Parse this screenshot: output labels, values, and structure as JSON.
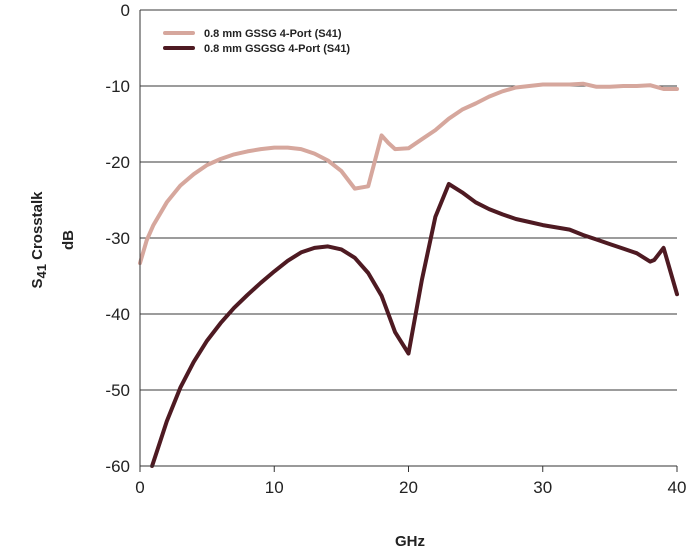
{
  "chart_data": {
    "type": "line",
    "title": "",
    "xlabel": "GHz",
    "ylabel_prefix": "S",
    "ylabel_sub": "41",
    "ylabel_rest": " Crosstalk",
    "yunit": "dB",
    "xlim": [
      0,
      40
    ],
    "ylim": [
      -60,
      0
    ],
    "xticks": [
      0,
      10,
      20,
      30,
      40
    ],
    "yticks": [
      0,
      -10,
      -20,
      -30,
      -40,
      -50,
      -60
    ],
    "grid": "horizontal",
    "legend": "top-left",
    "series": [
      {
        "name": "0.8 mm GSSG 4-Port (S41)",
        "color": "#d6a79d",
        "x": [
          0,
          0.5,
          1,
          2,
          3,
          4,
          5,
          6,
          7,
          8,
          9,
          10,
          11,
          12,
          13,
          14,
          15,
          16,
          17,
          18,
          18.5,
          19,
          20,
          21,
          22,
          23,
          24,
          25,
          26,
          27,
          28,
          29,
          30,
          31,
          32,
          33,
          34,
          35,
          36,
          37,
          38,
          39,
          40
        ],
        "y": [
          -33.3,
          -30.3,
          -28.3,
          -25.3,
          -23.1,
          -21.6,
          -20.4,
          -19.6,
          -19.0,
          -18.6,
          -18.3,
          -18.1,
          -18.1,
          -18.3,
          -18.9,
          -19.8,
          -21.2,
          -23.5,
          -23.2,
          -16.5,
          -17.5,
          -18.3,
          -18.2,
          -17.0,
          -15.8,
          -14.3,
          -13.1,
          -12.3,
          -11.4,
          -10.7,
          -10.2,
          -10.0,
          -9.8,
          -9.8,
          -9.8,
          -9.7,
          -10.1,
          -10.1,
          -10.0,
          -10.0,
          -9.9,
          -10.4,
          -10.4
        ]
      },
      {
        "name": "0.8 mm GSGSG 4-Port (S41)",
        "color": "#4e1a22",
        "x": [
          0.9,
          1.5,
          2,
          3,
          4,
          5,
          6,
          7,
          8,
          9,
          10,
          11,
          12,
          13,
          14,
          15,
          16,
          17,
          18,
          19,
          20,
          21,
          22,
          23,
          24,
          25,
          26,
          27,
          28,
          29,
          30,
          31,
          32,
          33,
          34,
          35,
          36,
          37,
          38,
          38.3,
          39,
          40
        ],
        "y": [
          -60.0,
          -56.8,
          -54.1,
          -49.7,
          -46.3,
          -43.5,
          -41.2,
          -39.2,
          -37.5,
          -35.9,
          -34.4,
          -33.0,
          -31.9,
          -31.3,
          -31.1,
          -31.5,
          -32.6,
          -34.6,
          -37.6,
          -42.4,
          -45.2,
          -35.5,
          -27.2,
          -22.9,
          -24.0,
          -25.3,
          -26.2,
          -26.9,
          -27.5,
          -27.9,
          -28.3,
          -28.6,
          -28.9,
          -29.6,
          -30.2,
          -30.8,
          -31.4,
          -32.0,
          -33.1,
          -32.9,
          -31.3,
          -37.4
        ]
      }
    ]
  }
}
